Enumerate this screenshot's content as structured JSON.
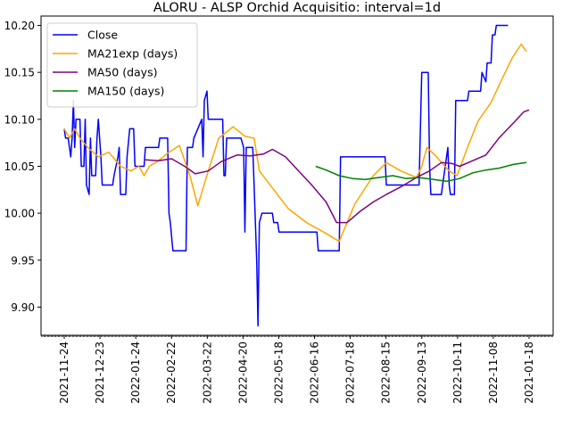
{
  "chart_data": {
    "type": "line",
    "title": "ALORU - ALSP Orchid Acquisitio: interval=1d",
    "xlabel": "",
    "ylabel": "",
    "x_ticks": [
      "2021-11-24",
      "2021-12-23",
      "2022-01-24",
      "2022-02-22",
      "2022-03-22",
      "2022-04-20",
      "2022-05-18",
      "2022-06-16",
      "2022-07-18",
      "2022-08-15",
      "2022-09-13",
      "2022-10-11",
      "2022-11-08",
      "2021-01-18"
    ],
    "y_ticks": [
      "9.90",
      "9.95",
      "10.00",
      "10.05",
      "10.10",
      "10.15",
      "10.20"
    ],
    "ylim": [
      9.87,
      10.21
    ],
    "grid": false,
    "legend_position": "top-left",
    "series": [
      {
        "name": "Close",
        "color": "#0000ff",
        "points": [
          [
            "2021-11-24",
            10.09
          ],
          [
            "2021-11-25",
            10.08
          ],
          [
            "2021-11-27",
            10.08
          ],
          [
            "2021-11-29",
            10.06
          ],
          [
            "2021-11-30",
            10.08
          ],
          [
            "2021-12-01",
            10.12
          ],
          [
            "2021-12-02",
            10.07
          ],
          [
            "2021-12-03",
            10.1
          ],
          [
            "2021-12-06",
            10.1
          ],
          [
            "2021-12-07",
            10.05
          ],
          [
            "2021-12-09",
            10.05
          ],
          [
            "2021-12-10",
            10.1
          ],
          [
            "2021-12-11",
            10.03
          ],
          [
            "2021-12-13",
            10.02
          ],
          [
            "2021-12-14",
            10.08
          ],
          [
            "2021-12-15",
            10.04
          ],
          [
            "2021-12-18",
            10.04
          ],
          [
            "2021-12-19",
            10.08
          ],
          [
            "2021-12-20",
            10.1
          ],
          [
            "2021-12-22",
            10.06
          ],
          [
            "2021-12-23",
            10.03
          ],
          [
            "2021-12-31",
            10.03
          ],
          [
            "2022-01-01",
            10.04
          ],
          [
            "2022-01-04",
            10.06
          ],
          [
            "2022-01-05",
            10.07
          ],
          [
            "2022-01-06",
            10.02
          ],
          [
            "2022-01-10",
            10.02
          ],
          [
            "2022-01-11",
            10.06
          ],
          [
            "2022-01-13",
            10.09
          ],
          [
            "2022-01-16",
            10.09
          ],
          [
            "2022-01-17",
            10.05
          ],
          [
            "2022-01-24",
            10.05
          ],
          [
            "2022-01-25",
            10.07
          ],
          [
            "2022-02-04",
            10.07
          ],
          [
            "2022-02-05",
            10.08
          ],
          [
            "2022-02-11",
            10.08
          ],
          [
            "2022-02-12",
            10.0
          ],
          [
            "2022-02-13",
            9.99
          ],
          [
            "2022-02-15",
            9.96
          ],
          [
            "2022-02-25",
            9.96
          ],
          [
            "2022-02-26",
            10.07
          ],
          [
            "2022-03-02",
            10.07
          ],
          [
            "2022-03-03",
            10.08
          ],
          [
            "2022-03-06",
            10.09
          ],
          [
            "2022-03-09",
            10.1
          ],
          [
            "2022-03-10",
            10.06
          ],
          [
            "2022-03-11",
            10.12
          ],
          [
            "2022-03-13",
            10.13
          ],
          [
            "2022-03-14",
            10.1
          ],
          [
            "2022-03-25",
            10.1
          ],
          [
            "2022-03-26",
            10.04
          ],
          [
            "2022-03-27",
            10.04
          ],
          [
            "2022-03-28",
            10.08
          ],
          [
            "2022-04-08",
            10.08
          ],
          [
            "2022-04-10",
            10.07
          ],
          [
            "2022-04-11",
            9.98
          ],
          [
            "2022-04-12",
            10.07
          ],
          [
            "2022-04-17",
            10.07
          ],
          [
            "2022-04-18",
            10.03
          ],
          [
            "2022-04-20",
            9.95
          ],
          [
            "2022-04-21",
            9.88
          ],
          [
            "2022-04-22",
            9.99
          ],
          [
            "2022-04-24",
            10.0
          ],
          [
            "2022-05-02",
            10.0
          ],
          [
            "2022-05-03",
            9.99
          ],
          [
            "2022-05-06",
            9.99
          ],
          [
            "2022-05-07",
            9.98
          ],
          [
            "2022-06-05",
            9.98
          ],
          [
            "2022-06-06",
            9.96
          ],
          [
            "2022-06-22",
            9.96
          ],
          [
            "2022-06-23",
            10.06
          ],
          [
            "2022-07-27",
            10.06
          ],
          [
            "2022-07-28",
            10.03
          ],
          [
            "2022-08-22",
            10.03
          ],
          [
            "2022-08-24",
            10.15
          ],
          [
            "2022-08-29",
            10.15
          ],
          [
            "2022-08-30",
            10.05
          ],
          [
            "2022-08-31",
            10.02
          ],
          [
            "2022-09-08",
            10.02
          ],
          [
            "2022-09-09",
            10.03
          ],
          [
            "2022-09-13",
            10.07
          ],
          [
            "2022-09-14",
            10.03
          ],
          [
            "2022-09-15",
            10.02
          ],
          [
            "2022-09-18",
            10.02
          ],
          [
            "2022-09-19",
            10.12
          ],
          [
            "2022-09-28",
            10.12
          ],
          [
            "2022-09-29",
            10.13
          ],
          [
            "2022-10-08",
            10.13
          ],
          [
            "2022-10-09",
            10.15
          ],
          [
            "2022-10-12",
            10.14
          ],
          [
            "2022-10-13",
            10.16
          ],
          [
            "2022-10-16",
            10.16
          ],
          [
            "2022-10-17",
            10.19
          ],
          [
            "2022-10-19",
            10.19
          ],
          [
            "2022-10-20",
            10.2
          ],
          [
            "2022-10-29",
            10.2
          ]
        ]
      },
      {
        "name": "MA21exp (days)",
        "color": "#ffa500",
        "points": [
          [
            "2021-11-24",
            10.09
          ],
          [
            "2021-11-28",
            10.08
          ],
          [
            "2021-12-02",
            10.09
          ],
          [
            "2021-12-06",
            10.08
          ],
          [
            "2021-12-12",
            10.07
          ],
          [
            "2021-12-20",
            10.06
          ],
          [
            "2021-12-28",
            10.065
          ],
          [
            "2022-01-06",
            10.05
          ],
          [
            "2022-01-14",
            10.045
          ],
          [
            "2022-01-20",
            10.05
          ],
          [
            "2022-01-24",
            10.04
          ],
          [
            "2022-01-28",
            10.05
          ],
          [
            "2022-02-03",
            10.055
          ],
          [
            "2022-02-12",
            10.065
          ],
          [
            "2022-02-20",
            10.072
          ],
          [
            "2022-02-28",
            10.04
          ],
          [
            "2022-03-06",
            10.008
          ],
          [
            "2022-03-14",
            10.045
          ],
          [
            "2022-03-22",
            10.08
          ],
          [
            "2022-04-02",
            10.092
          ],
          [
            "2022-04-11",
            10.082
          ],
          [
            "2022-04-18",
            10.08
          ],
          [
            "2022-04-22",
            10.045
          ],
          [
            "2022-05-02",
            10.027
          ],
          [
            "2022-05-14",
            10.005
          ],
          [
            "2022-05-28",
            9.99
          ],
          [
            "2022-06-10",
            9.98
          ],
          [
            "2022-06-22",
            9.97
          ],
          [
            "2022-07-04",
            10.01
          ],
          [
            "2022-07-18",
            10.04
          ],
          [
            "2022-07-28",
            10.054
          ],
          [
            "2022-08-08",
            10.045
          ],
          [
            "2022-08-20",
            10.038
          ],
          [
            "2022-08-24",
            10.05
          ],
          [
            "2022-08-28",
            10.07
          ],
          [
            "2022-09-03",
            10.062
          ],
          [
            "2022-09-14",
            10.045
          ],
          [
            "2022-09-20",
            10.04
          ],
          [
            "2022-09-28",
            10.07
          ],
          [
            "2022-10-06",
            10.098
          ],
          [
            "2022-10-16",
            10.118
          ],
          [
            "2022-10-24",
            10.142
          ],
          [
            "2022-11-01",
            10.165
          ],
          [
            "2022-11-08",
            10.18
          ],
          [
            "2022-11-12",
            10.172
          ]
        ]
      },
      {
        "name": "MA50 (days)",
        "color": "#800080",
        "points": [
          [
            "2022-01-24",
            10.057
          ],
          [
            "2022-02-04",
            10.056
          ],
          [
            "2022-02-14",
            10.058
          ],
          [
            "2022-02-24",
            10.05
          ],
          [
            "2022-03-04",
            10.042
          ],
          [
            "2022-03-14",
            10.045
          ],
          [
            "2022-03-24",
            10.055
          ],
          [
            "2022-04-05",
            10.062
          ],
          [
            "2022-04-15",
            10.061
          ],
          [
            "2022-04-25",
            10.063
          ],
          [
            "2022-05-02",
            10.068
          ],
          [
            "2022-05-12",
            10.06
          ],
          [
            "2022-05-22",
            10.045
          ],
          [
            "2022-06-01",
            10.03
          ],
          [
            "2022-06-12",
            10.012
          ],
          [
            "2022-06-20",
            9.99
          ],
          [
            "2022-06-28",
            9.99
          ],
          [
            "2022-07-08",
            10.002
          ],
          [
            "2022-07-18",
            10.012
          ],
          [
            "2022-07-28",
            10.02
          ],
          [
            "2022-08-08",
            10.028
          ],
          [
            "2022-08-20",
            10.038
          ],
          [
            "2022-08-30",
            10.045
          ],
          [
            "2022-09-08",
            10.054
          ],
          [
            "2022-09-16",
            10.053
          ],
          [
            "2022-09-22",
            10.05
          ],
          [
            "2022-10-02",
            10.056
          ],
          [
            "2022-10-12",
            10.062
          ],
          [
            "2022-10-22",
            10.08
          ],
          [
            "2022-11-02",
            10.096
          ],
          [
            "2022-11-10",
            10.108
          ],
          [
            "2022-11-14",
            10.11
          ]
        ]
      },
      {
        "name": "MA150 (days)",
        "color": "#008000",
        "points": [
          [
            "2022-06-04",
            10.05
          ],
          [
            "2022-06-12",
            10.046
          ],
          [
            "2022-06-22",
            10.04
          ],
          [
            "2022-07-02",
            10.037
          ],
          [
            "2022-07-12",
            10.036
          ],
          [
            "2022-07-22",
            10.038
          ],
          [
            "2022-08-02",
            10.04
          ],
          [
            "2022-08-12",
            10.037
          ],
          [
            "2022-08-22",
            10.038
          ],
          [
            "2022-09-02",
            10.036
          ],
          [
            "2022-09-12",
            10.034
          ],
          [
            "2022-09-22",
            10.037
          ],
          [
            "2022-10-02",
            10.043
          ],
          [
            "2022-10-12",
            10.046
          ],
          [
            "2022-10-22",
            10.048
          ],
          [
            "2022-11-02",
            10.052
          ],
          [
            "2022-11-12",
            10.054
          ]
        ]
      }
    ]
  }
}
